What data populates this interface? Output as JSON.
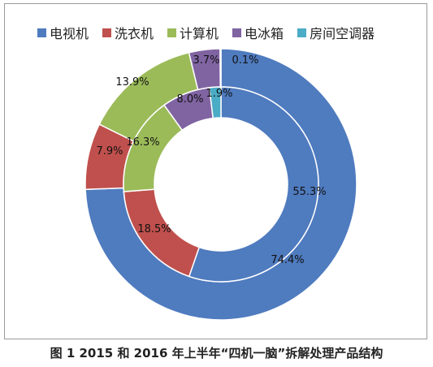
{
  "chart_data": {
    "type": "pie",
    "subtype": "double-donut",
    "title": "",
    "caption": "图 1  2015 和 2016 年上半年“四机一脑”拆解处理产品结构",
    "categories": [
      "电视机",
      "洗衣机",
      "计算机",
      "电冰箱",
      "房间空调器"
    ],
    "colors": [
      "#4f7bbf",
      "#c0504d",
      "#9bbb59",
      "#8064a2",
      "#4bacc6"
    ],
    "rings": [
      {
        "name": "outer",
        "values": [
          74.4,
          7.9,
          13.9,
          3.7,
          0.1
        ],
        "labels": [
          "74.4%",
          "7.9%",
          "13.9%",
          "3.7%",
          "0.1%"
        ]
      },
      {
        "name": "inner",
        "values": [
          55.3,
          18.5,
          16.3,
          8.0,
          1.9
        ],
        "labels": [
          "55.3%",
          "18.5%",
          "16.3%",
          "8.0%",
          "1.9%"
        ]
      }
    ],
    "legend_position": "top"
  }
}
